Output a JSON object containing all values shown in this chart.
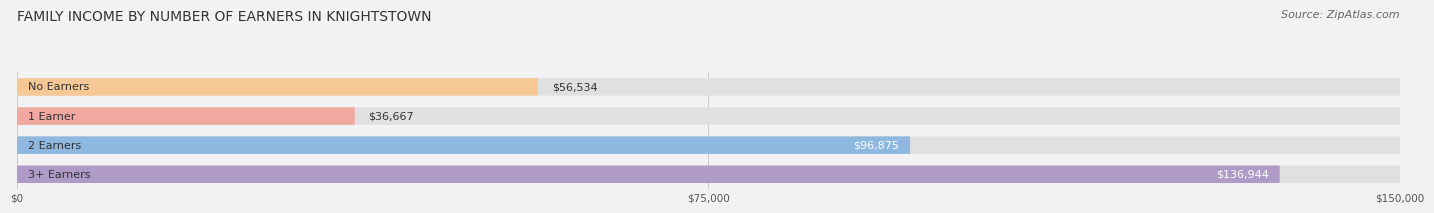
{
  "title": "FAMILY INCOME BY NUMBER OF EARNERS IN KNIGHTSTOWN",
  "source": "Source: ZipAtlas.com",
  "categories": [
    "No Earners",
    "1 Earner",
    "2 Earners",
    "3+ Earners"
  ],
  "values": [
    56534,
    36667,
    96875,
    136944
  ],
  "labels": [
    "$56,534",
    "$36,667",
    "$96,875",
    "$136,944"
  ],
  "bar_colors": [
    "#f5c896",
    "#f0a8a0",
    "#8fb8e0",
    "#b09ac8"
  ],
  "max_value": 150000,
  "xticks": [
    0,
    75000,
    150000
  ],
  "xtick_labels": [
    "$0",
    "$75,000",
    "$150,000"
  ],
  "title_fontsize": 10,
  "source_fontsize": 8,
  "label_fontsize": 8,
  "background_color": "#f2f2f2",
  "bar_bg_fill": "#e0e0e0"
}
